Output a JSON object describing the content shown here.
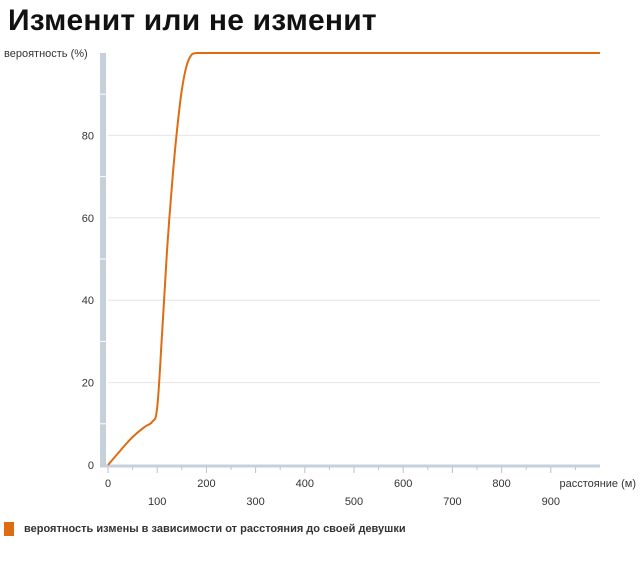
{
  "title": "Изменит или не изменит",
  "colors": {
    "series": "#e06c12",
    "axis_bar": "#c5d0db",
    "grid": "#e6e6e6",
    "text": "#333333"
  },
  "chart_data": {
    "type": "line",
    "title": "Изменит или не изменит",
    "ylabel": "вероятность (%)",
    "xlabel": "расстояние (м)",
    "xlim": [
      0,
      1000
    ],
    "ylim": [
      0,
      100
    ],
    "x_ticks": [
      0,
      100,
      200,
      300,
      400,
      500,
      600,
      700,
      800,
      900
    ],
    "y_ticks": [
      0,
      20,
      40,
      60,
      80
    ],
    "grid": true,
    "legend": "bottom-left",
    "series": [
      {
        "name": "вероятность измены в зависимости от расстояния до своей девушки",
        "color": "#e06c12",
        "x": [
          0,
          25,
          50,
          75,
          90,
          100,
          110,
          120,
          130,
          140,
          150,
          160,
          170,
          180,
          190,
          200,
          300,
          400,
          500,
          600,
          700,
          800,
          900,
          1000
        ],
        "y": [
          0,
          3.5,
          6.8,
          9.3,
          10.5,
          14,
          32,
          52,
          68,
          81,
          91,
          97,
          99.6,
          100,
          100,
          100,
          100,
          100,
          100,
          100,
          100,
          100,
          100,
          100
        ]
      }
    ]
  }
}
